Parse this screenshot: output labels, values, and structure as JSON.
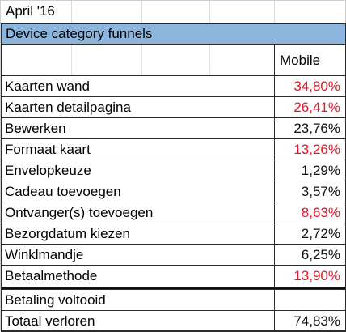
{
  "date": "April '16",
  "header": {
    "title": "Device category funnels"
  },
  "columns": {
    "mobile": "Mobile"
  },
  "colors": {
    "header_bg": "#8cb5dd",
    "red": "#e3172a",
    "black": "#111111"
  },
  "rows": [
    {
      "label": "Kaarten wand",
      "value": "34,80%",
      "color": "red"
    },
    {
      "label": "Kaarten detailpagina",
      "value": "26,41%",
      "color": "red"
    },
    {
      "label": "Bewerken",
      "value": "23,76%",
      "color": "black"
    },
    {
      "label": "Formaat kaart",
      "value": "13,26%",
      "color": "red"
    },
    {
      "label": "Envelopkeuze",
      "value": "1,29%",
      "color": "black"
    },
    {
      "label": "Cadeau toevoegen",
      "value": "3,57%",
      "color": "black"
    },
    {
      "label": "Ontvanger(s) toevoegen",
      "value": "8,63%",
      "color": "red"
    },
    {
      "label": "Bezorgdatum kiezen",
      "value": "2,72%",
      "color": "black"
    },
    {
      "label": "Winklmandje",
      "value": "6,25%",
      "color": "black"
    },
    {
      "label": "Betaalmethode",
      "value": "13,90%",
      "color": "red"
    }
  ],
  "summary": [
    {
      "label": "Betaling voltooid",
      "value": ""
    },
    {
      "label": "Totaal verloren",
      "value": "74,83%"
    }
  ]
}
